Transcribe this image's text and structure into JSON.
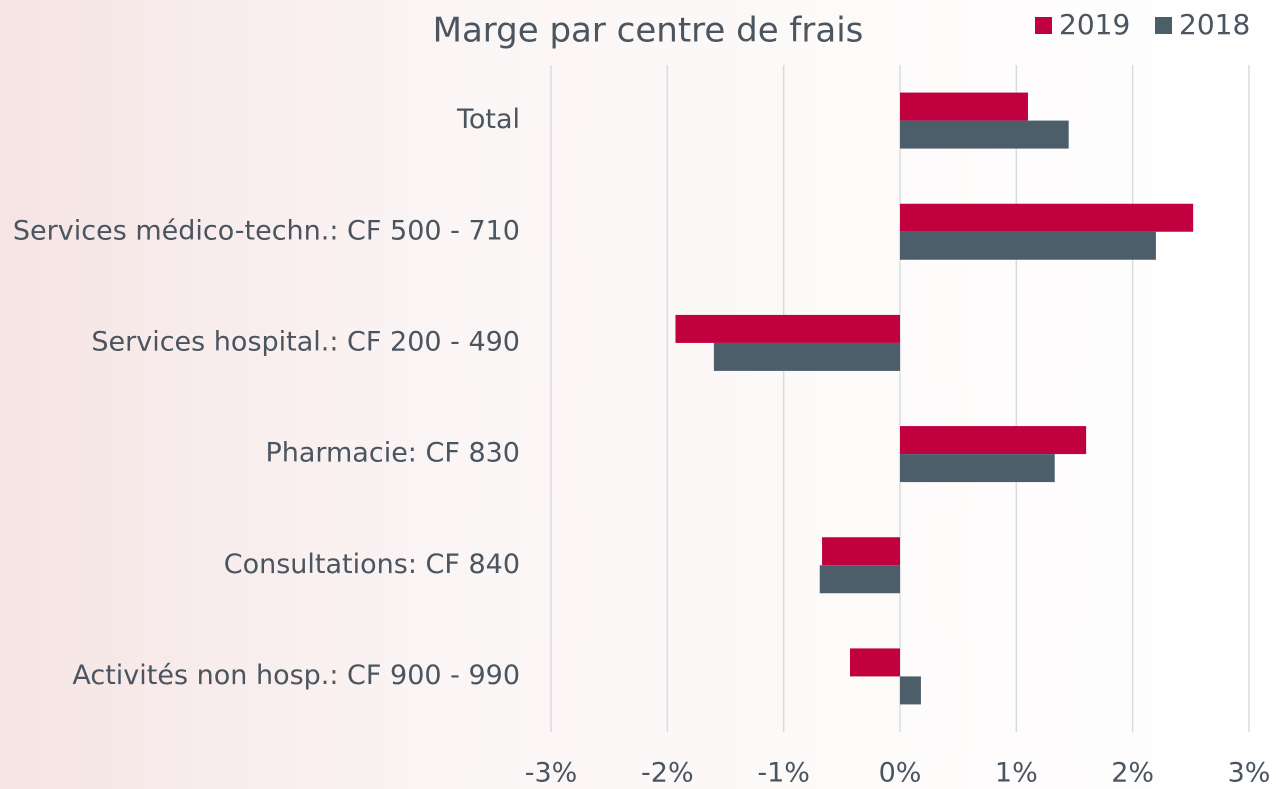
{
  "chart_data": {
    "type": "barh",
    "title": "Marge par centre de frais",
    "categories": [
      "Total",
      "Services médico-techn.: CF 500 - 710",
      "Services hospital.: CF 200 - 490",
      "Pharmacie: CF 830",
      "Consultations: CF 840",
      "Activités non hosp.: CF 900 - 990"
    ],
    "series": [
      {
        "name": "2019",
        "color": "#c0003f",
        "values": [
          1.1,
          2.52,
          -1.93,
          1.6,
          -0.67,
          -0.43
        ]
      },
      {
        "name": "2018",
        "color": "#4d5e6b",
        "values": [
          1.45,
          2.2,
          -1.6,
          1.33,
          -0.69,
          0.18
        ]
      }
    ],
    "xlim": [
      -3,
      3
    ],
    "xticks": [
      {
        "value": -3,
        "label": "-3%"
      },
      {
        "value": -2,
        "label": "-2%"
      },
      {
        "value": -1,
        "label": "-1%"
      },
      {
        "value": 0,
        "label": "0%"
      },
      {
        "value": 1,
        "label": "1%"
      },
      {
        "value": 2,
        "label": "2%"
      },
      {
        "value": 3,
        "label": "3%"
      }
    ],
    "grid": true,
    "legend": "top-right"
  }
}
